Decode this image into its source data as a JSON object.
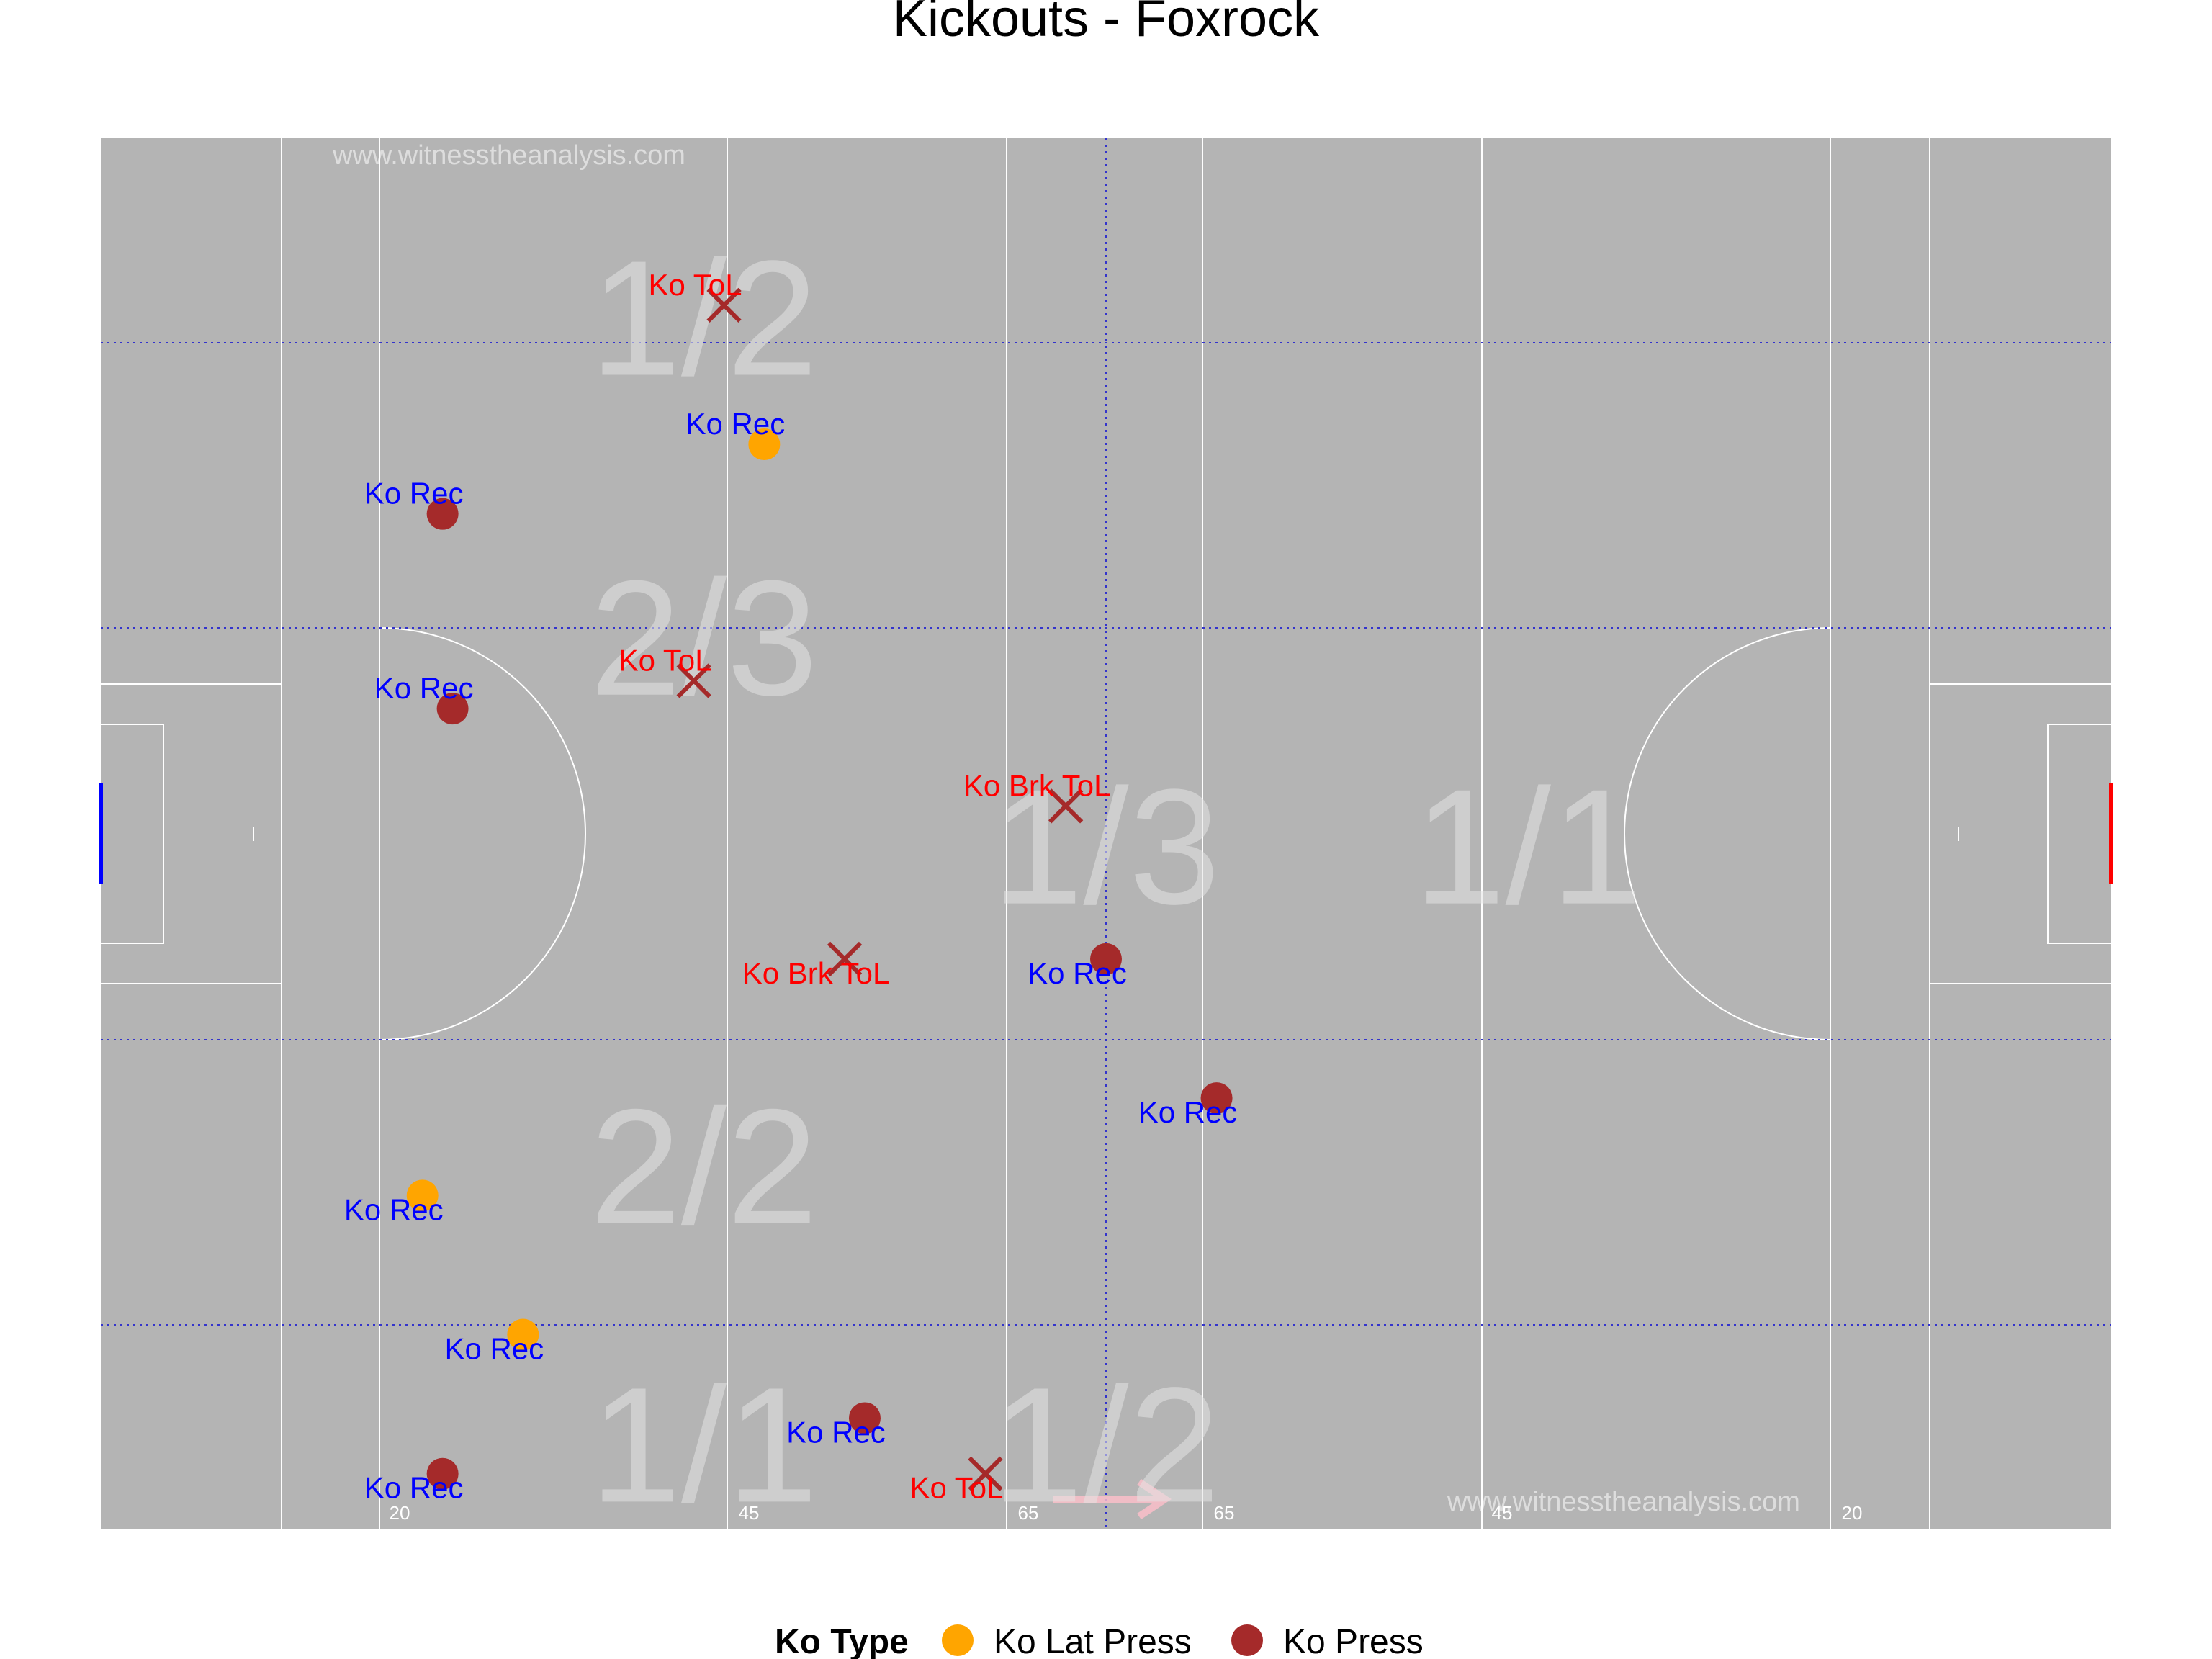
{
  "chart_data": {
    "type": "scatter",
    "title": "Kickouts - Foxrock",
    "watermark": "www.witnesstheanalysis.com",
    "pitch_ticks": [
      "20",
      "45",
      "65",
      "65",
      "45",
      "20"
    ],
    "zone_labels": [
      {
        "text": "1/2",
        "x": 30,
        "y": 83
      },
      {
        "text": "2/3",
        "x": 30,
        "y": 60
      },
      {
        "text": "1/3",
        "x": 50,
        "y": 45
      },
      {
        "text": "1/1",
        "x": 71,
        "y": 45
      },
      {
        "text": "2/2",
        "x": 30,
        "y": 22
      },
      {
        "text": "1/1",
        "x": 30,
        "y": 2
      },
      {
        "text": "1/2",
        "x": 50,
        "y": 2
      }
    ],
    "legend": {
      "title": "Ko Type",
      "items": [
        {
          "label": "Ko Lat Press",
          "color": "#FFA500"
        },
        {
          "label": "Ko Press",
          "color": "#A52A2A"
        }
      ]
    },
    "colors": {
      "pitch": "#B4B4B4",
      "ko_rec_label": "#0000FF",
      "ko_tol_label": "#FF0000",
      "goal_left": "#0000FF",
      "goal_right": "#FF0000",
      "arrow": "#FFC0CB"
    },
    "points": [
      {
        "x": 31,
        "y": 88,
        "type": "Ko Press",
        "marker": "cross",
        "label": "Ko ToL"
      },
      {
        "x": 33,
        "y": 78,
        "type": "Ko Lat Press",
        "marker": "dot",
        "label": "Ko Rec"
      },
      {
        "x": 17,
        "y": 73,
        "type": "Ko Press",
        "marker": "dot",
        "label": "Ko Rec"
      },
      {
        "x": 29.5,
        "y": 61,
        "type": "Ko Press",
        "marker": "cross",
        "label": "Ko ToL"
      },
      {
        "x": 17.5,
        "y": 59,
        "type": "Ko Press",
        "marker": "dot",
        "label": "Ko Rec"
      },
      {
        "x": 48,
        "y": 52,
        "type": "Ko Press",
        "marker": "cross",
        "label": "Ko Brk ToL"
      },
      {
        "x": 37,
        "y": 41,
        "type": "Ko Press",
        "marker": "cross",
        "label": "Ko Brk ToL"
      },
      {
        "x": 50,
        "y": 41,
        "type": "Ko Press",
        "marker": "dot",
        "label": "Ko Rec"
      },
      {
        "x": 55.5,
        "y": 31,
        "type": "Ko Press",
        "marker": "dot",
        "label": "Ko Rec"
      },
      {
        "x": 16,
        "y": 24,
        "type": "Ko Lat Press",
        "marker": "dot",
        "label": "Ko Rec"
      },
      {
        "x": 21,
        "y": 14,
        "type": "Ko Lat Press",
        "marker": "dot",
        "label": "Ko Rec"
      },
      {
        "x": 38,
        "y": 8,
        "type": "Ko Press",
        "marker": "dot",
        "label": "Ko Rec"
      },
      {
        "x": 17,
        "y": 4,
        "type": "Ko Press",
        "marker": "dot",
        "label": "Ko Rec"
      },
      {
        "x": 44,
        "y": 4,
        "type": "Ko Press",
        "marker": "cross",
        "label": "Ko ToL"
      }
    ]
  }
}
